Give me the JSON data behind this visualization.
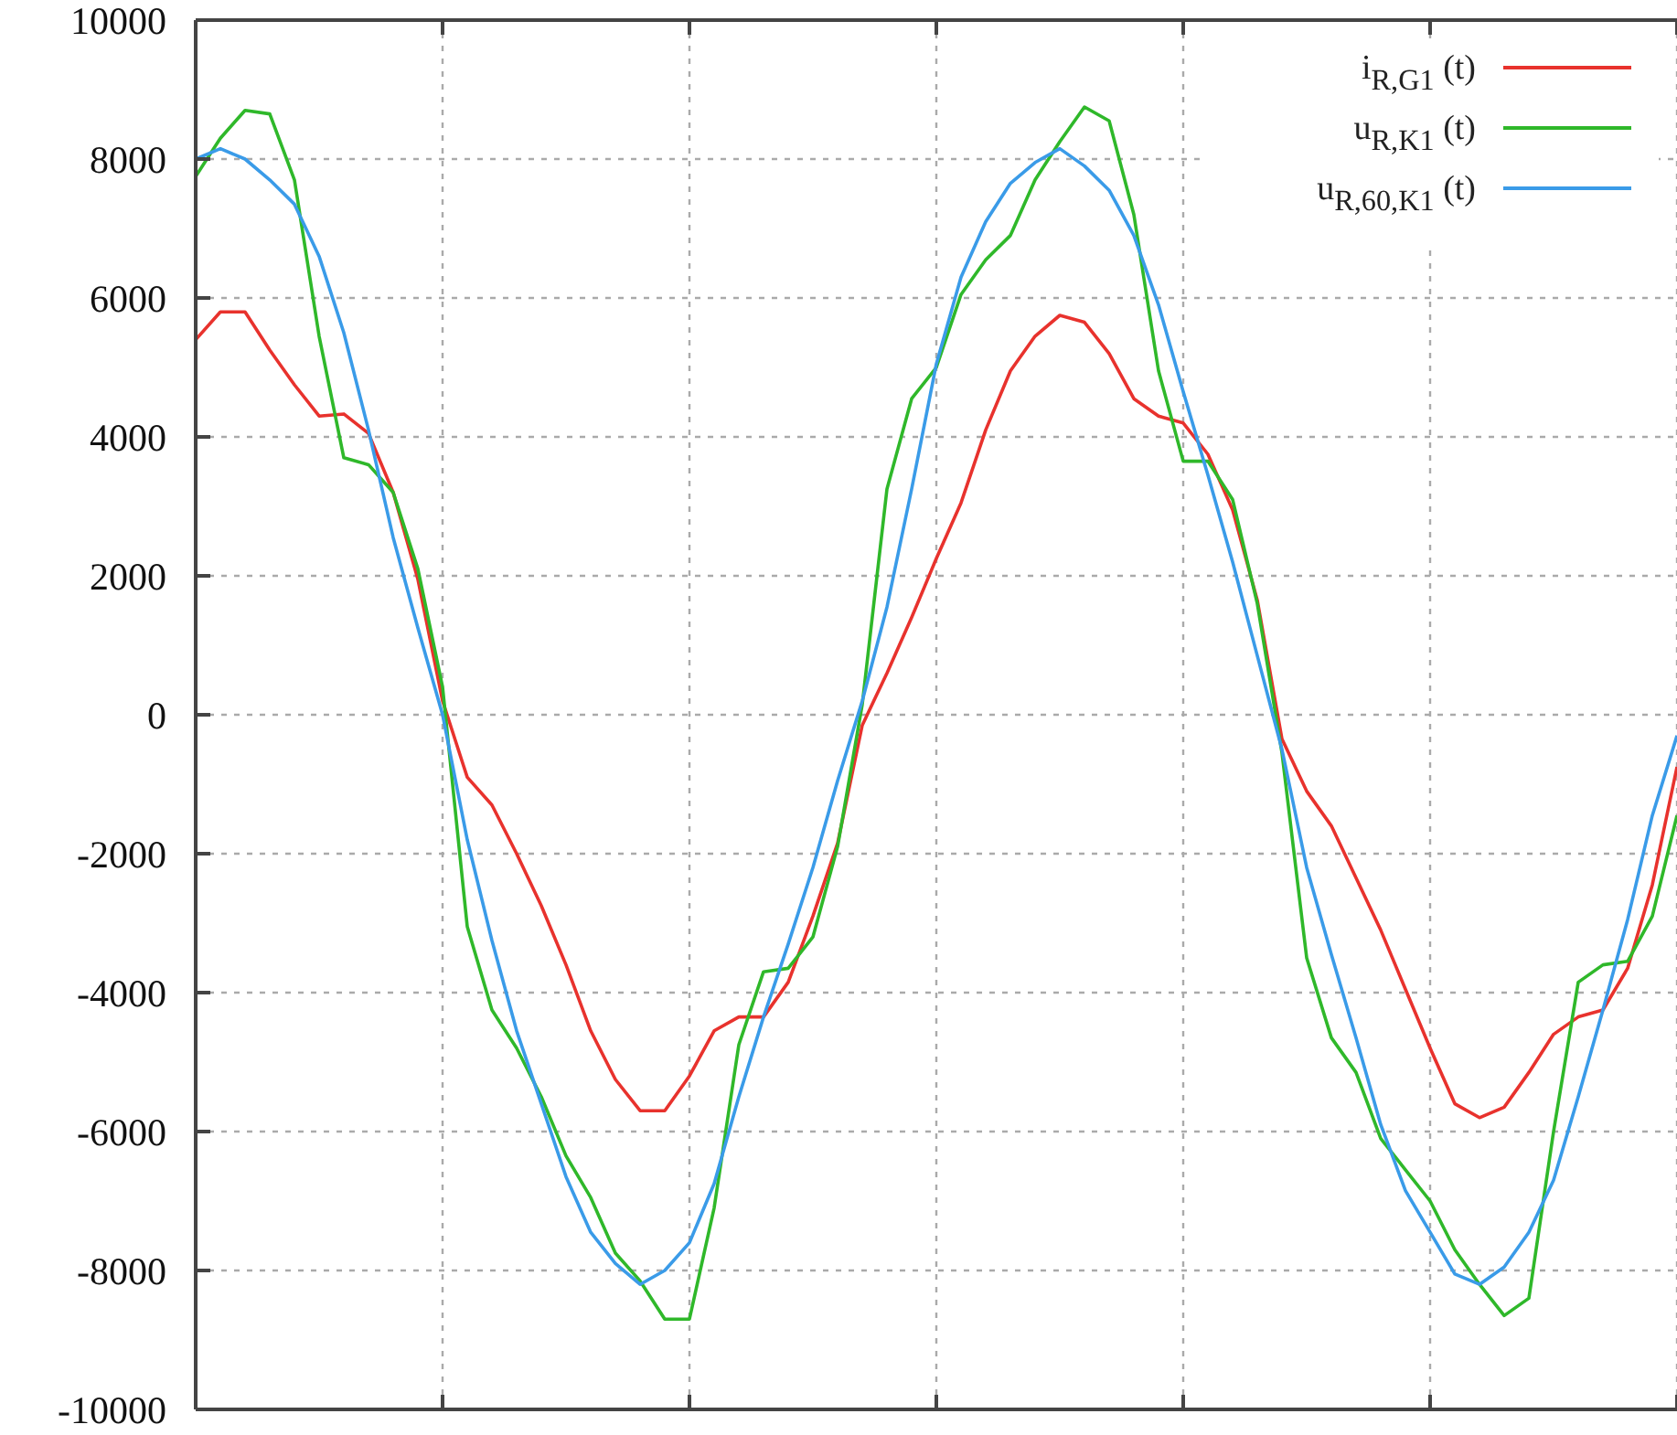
{
  "chart_data": {
    "type": "line",
    "categories": [
      null,
      null,
      null,
      null,
      null,
      null,
      null,
      null,
      null,
      null,
      null,
      null,
      null,
      null,
      null,
      null,
      null,
      null,
      null,
      null,
      null,
      null,
      null,
      null,
      null,
      null,
      null,
      null,
      null,
      null,
      null,
      null,
      null,
      null,
      null,
      null,
      null,
      null,
      null,
      null,
      null,
      null,
      null,
      null,
      null,
      null,
      null,
      null,
      null,
      null,
      null,
      null,
      null,
      null,
      null,
      null,
      null,
      null,
      null,
      null,
      null
    ],
    "ylim": [
      -10000,
      10000
    ],
    "yticks": [
      -10000,
      -8000,
      -6000,
      -4000,
      -2000,
      0,
      2000,
      4000,
      6000,
      8000,
      10000
    ],
    "tick_labels": "y",
    "grid": true,
    "legend": "top right",
    "marker": "none",
    "line_style": "solid",
    "series": [
      {
        "name": "i$_{R,G1}$ (t)",
        "color": "#e8322d",
        "values": [
          5400,
          5800,
          5800,
          5250,
          4750,
          4300,
          4330,
          4050,
          3200,
          1950,
          200,
          -900,
          -1300,
          -2000,
          -2750,
          -3600,
          -4550,
          -5250,
          -5700,
          -5700,
          -5200,
          -4550,
          -4350,
          -4350,
          -3850,
          -2900,
          -1850,
          -150,
          600,
          1400,
          2250,
          3050,
          4100,
          4950,
          5450,
          5750,
          5650,
          5200,
          4550,
          4300,
          4200,
          3750,
          2950,
          1650,
          -350,
          -1100,
          -1600,
          -2350,
          -3100,
          -3950,
          -4800,
          -5600,
          -5800,
          -5650,
          -5150,
          -4600,
          -4350,
          -4250,
          -3650,
          -2450,
          -750
        ]
      },
      {
        "name": "u$_{R,K1}$ (t)",
        "color": "#2fb82a",
        "values": [
          7750,
          8300,
          8700,
          8650,
          7700,
          5450,
          3700,
          3600,
          3200,
          2100,
          400,
          -3050,
          -4250,
          -4800,
          -5500,
          -6350,
          -6950,
          -7750,
          -8150,
          -8700,
          -8700,
          -7100,
          -4750,
          -3700,
          -3650,
          -3200,
          -1900,
          150,
          3250,
          4550,
          5000,
          6050,
          6550,
          6900,
          7700,
          8250,
          8750,
          8550,
          7200,
          4950,
          3650,
          3650,
          3100,
          1600,
          -550,
          -3500,
          -4650,
          -5150,
          -6100,
          -6550,
          -7000,
          -7700,
          -8200,
          -8650,
          -8400,
          -6000,
          -3850,
          -3600,
          -3550,
          -2900,
          -1450
        ]
      },
      {
        "name": "u$_{R,60,K1}$ (t)",
        "color": "#3a9be8",
        "values": [
          8000,
          8150,
          8000,
          7700,
          7350,
          6600,
          5500,
          4100,
          2550,
          1250,
          0,
          -1800,
          -3250,
          -4550,
          -5600,
          -6650,
          -7450,
          -7900,
          -8200,
          -8000,
          -7600,
          -6750,
          -5500,
          -4350,
          -3300,
          -2200,
          -950,
          200,
          1550,
          3250,
          5050,
          6300,
          7100,
          7650,
          7950,
          8150,
          7900,
          7550,
          6900,
          5900,
          4650,
          3450,
          2200,
          850,
          -500,
          -2200,
          -3450,
          -4650,
          -5900,
          -6850,
          -7450,
          -8050,
          -8200,
          -7950,
          -7450,
          -6700,
          -5500,
          -4250,
          -2950,
          -1450,
          -300
        ]
      }
    ]
  }
}
